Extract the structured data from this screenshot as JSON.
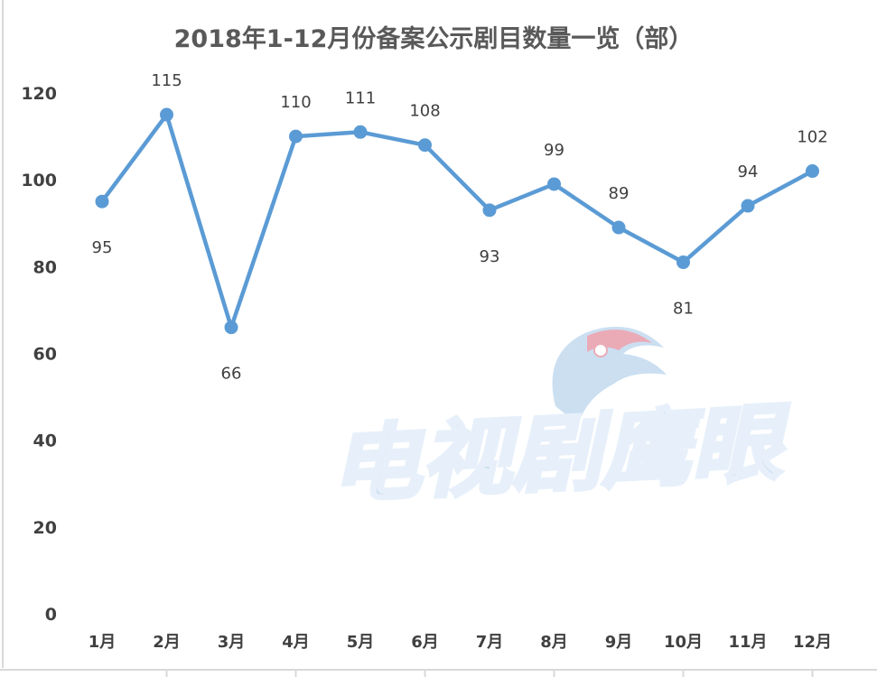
{
  "chart_data": {
    "type": "line",
    "title": "2018年1-12月份备案公示剧目数量一览（部）",
    "categories": [
      "1月",
      "2月",
      "3月",
      "4月",
      "5月",
      "6月",
      "7月",
      "8月",
      "9月",
      "10月",
      "11月",
      "12月"
    ],
    "series": [
      {
        "values": [
          95,
          115,
          66,
          110,
          111,
          108,
          93,
          99,
          89,
          81,
          94,
          102
        ]
      }
    ],
    "ylim": [
      0,
      120
    ],
    "yticks": [
      0,
      20,
      40,
      60,
      80,
      100,
      120
    ],
    "grid": false,
    "data_labels": true,
    "line_color": "#5b9bd5"
  },
  "watermark": {
    "text": "电视剧鹰眼",
    "color": "#c9def1",
    "accent": "#e9a7b4"
  }
}
